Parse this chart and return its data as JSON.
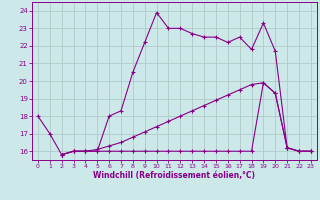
{
  "xlabel": "Windchill (Refroidissement éolien,°C)",
  "bg_color": "#cce8e8",
  "grid_color": "#b0c8c8",
  "line_color": "#880088",
  "xlim": [
    -0.5,
    23.5
  ],
  "ylim": [
    15.5,
    24.5
  ],
  "yticks": [
    16,
    17,
    18,
    19,
    20,
    21,
    22,
    23,
    24
  ],
  "xticks": [
    0,
    1,
    2,
    3,
    4,
    5,
    6,
    7,
    8,
    9,
    10,
    11,
    12,
    13,
    14,
    15,
    16,
    17,
    18,
    19,
    20,
    21,
    22,
    23
  ],
  "line1_x": [
    0,
    1,
    2,
    3,
    4,
    5,
    6,
    7,
    8,
    9,
    10,
    11,
    12,
    13,
    14,
    15,
    16,
    17,
    18,
    19,
    20,
    21,
    22,
    23
  ],
  "line1_y": [
    18.0,
    17.0,
    15.8,
    16.0,
    16.0,
    16.0,
    18.0,
    18.3,
    20.5,
    22.2,
    23.9,
    23.0,
    23.0,
    22.7,
    22.5,
    22.5,
    22.2,
    22.5,
    21.8,
    23.3,
    21.7,
    16.2,
    16.0,
    16.0
  ],
  "line2_x": [
    2,
    3,
    4,
    5,
    6,
    7,
    8,
    9,
    10,
    11,
    12,
    13,
    14,
    15,
    16,
    17,
    18,
    19,
    20,
    21,
    22,
    23
  ],
  "line2_y": [
    15.8,
    16.0,
    16.0,
    16.0,
    16.0,
    16.0,
    16.0,
    16.0,
    16.0,
    16.0,
    16.0,
    16.0,
    16.0,
    16.0,
    16.0,
    16.0,
    16.0,
    19.9,
    19.3,
    16.2,
    16.0,
    16.0
  ],
  "line3_x": [
    2,
    3,
    4,
    5,
    6,
    7,
    8,
    9,
    10,
    11,
    12,
    13,
    14,
    15,
    16,
    17,
    18,
    19,
    20,
    21,
    22,
    23
  ],
  "line3_y": [
    15.8,
    16.0,
    16.0,
    16.1,
    16.3,
    16.5,
    16.8,
    17.1,
    17.4,
    17.7,
    18.0,
    18.3,
    18.6,
    18.9,
    19.2,
    19.5,
    19.8,
    19.9,
    19.3,
    16.2,
    16.0,
    16.0
  ]
}
